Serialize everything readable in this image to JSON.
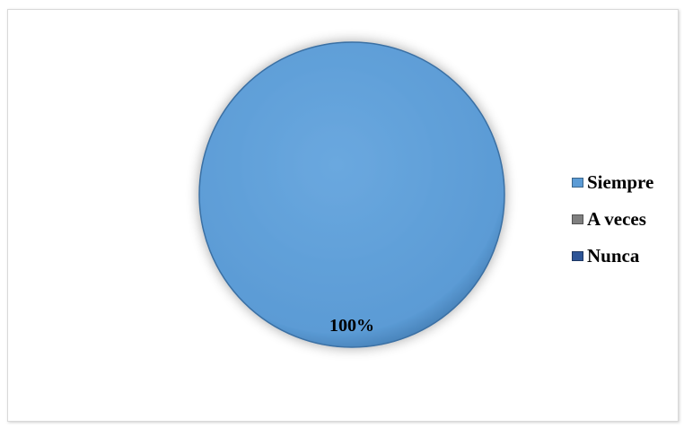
{
  "chart_data": {
    "type": "pie",
    "categories": [
      "Siempre",
      "A veces",
      "Nunca"
    ],
    "values": [
      100,
      0,
      0
    ],
    "data_labels": [
      "100%",
      "",
      ""
    ],
    "colors": [
      "#5b9bd5",
      "#7f7f7f",
      "#2e5597"
    ],
    "legend_position": "right",
    "title": ""
  }
}
